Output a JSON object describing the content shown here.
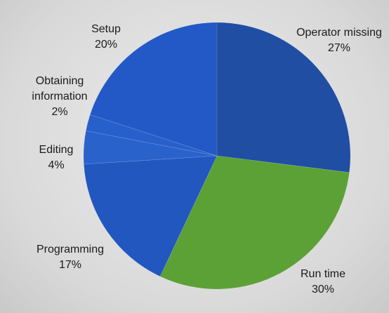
{
  "chart_data": {
    "type": "pie",
    "title": "",
    "start_angle_deg": 0,
    "direction": "clockwise",
    "slices": [
      {
        "label_lines": [
          "Operator missing",
          "27%"
        ],
        "value": 27,
        "color": "#1f4ea3"
      },
      {
        "label_lines": [
          "Run time",
          "30%"
        ],
        "value": 30,
        "color": "#5ca135"
      },
      {
        "label_lines": [
          "Programming",
          "17%"
        ],
        "value": 17,
        "color": "#2257c0"
      },
      {
        "label_lines": [
          "Editing",
          "4%"
        ],
        "value": 4,
        "color": "#2a62cc"
      },
      {
        "label_lines": [
          "Obtaining",
          "information",
          "2%"
        ],
        "value": 2,
        "color": "#2760cb"
      },
      {
        "label_lines": [
          "Setup",
          "20%"
        ],
        "value": 20,
        "color": "#2359c6"
      }
    ]
  }
}
